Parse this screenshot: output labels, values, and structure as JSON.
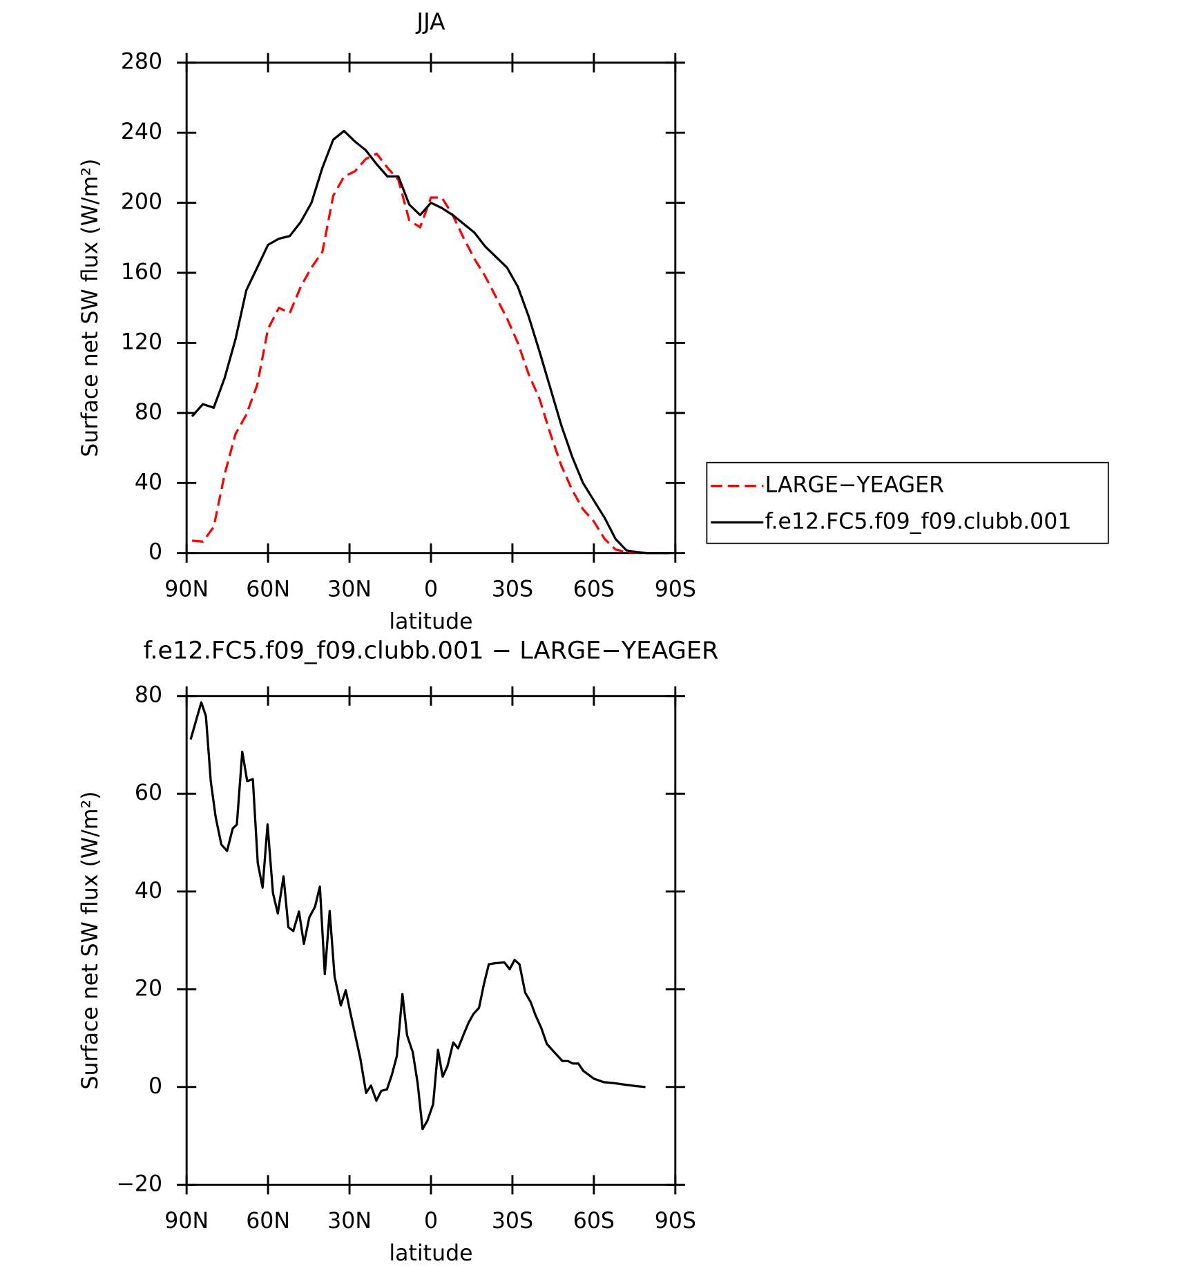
{
  "chart_data": [
    {
      "type": "line",
      "title": "JJA",
      "xlabel": "latitude",
      "ylabel": "Surface net SW flux (W/m²)",
      "x": [
        88,
        84,
        80,
        76,
        72,
        68,
        64,
        60,
        56,
        52,
        48,
        44,
        40,
        36,
        32,
        28,
        24,
        20,
        16,
        12,
        8,
        4,
        0,
        -4,
        -8,
        -12,
        -16,
        -20,
        -24,
        -28,
        -32,
        -36,
        -40,
        -44,
        -48,
        -52,
        -56,
        -60,
        -64,
        -68,
        -72,
        -76,
        -80,
        -84,
        -88
      ],
      "series": [
        {
          "name": "LARGE−YEAGER",
          "color": "#ff0000",
          "dash": "dashed",
          "values": [
            7,
            6.5,
            15,
            45,
            68,
            79,
            96,
            128,
            140,
            137,
            152,
            163,
            172,
            204,
            215,
            218,
            225,
            228,
            220,
            213,
            190,
            186,
            203,
            203,
            193,
            180,
            168,
            158,
            146,
            134,
            120,
            102,
            88,
            68,
            50,
            36,
            25,
            18,
            8,
            2,
            0.5,
            0.2,
            0,
            0,
            0
          ]
        },
        {
          "name": "f.e12.FC5.f09_f09.clubb.001",
          "color": "#000000",
          "dash": "solid",
          "values": [
            78,
            85,
            83,
            100,
            122,
            150,
            163,
            176,
            179.5,
            181,
            189,
            200,
            220,
            236,
            241,
            235,
            230,
            222,
            215,
            215,
            199,
            193,
            200,
            197,
            193,
            188,
            183,
            175,
            169,
            163,
            152,
            135,
            115,
            94,
            73,
            55,
            40,
            30,
            20,
            8,
            1.5,
            0.4,
            0,
            0,
            0
          ]
        }
      ],
      "xlim": [
        90,
        -90
      ],
      "xticks": [
        {
          "value": 90,
          "label": "90N"
        },
        {
          "value": 60,
          "label": "60N"
        },
        {
          "value": 30,
          "label": "30N"
        },
        0,
        {
          "value": -30,
          "label": "30S"
        },
        {
          "value": -60,
          "label": "60S"
        },
        {
          "value": -90,
          "label": "90S"
        }
      ],
      "ylim": [
        0,
        280
      ],
      "yticks": [
        0,
        40,
        80,
        120,
        160,
        200,
        240,
        280
      ],
      "legend": "right-outside"
    },
    {
      "type": "line",
      "title": "f.e12.FC5.f09_f09.clubb.001 − LARGE−YEAGER",
      "xlabel": "latitude",
      "ylabel": "Surface net SW flux (W/m²)",
      "x": [
        88.5,
        84.6,
        82.9,
        81.1,
        79.3,
        77.2,
        75.1,
        73,
        71.5,
        69.5,
        67.7,
        65.6,
        63.8,
        62,
        60.2,
        58.2,
        56.4,
        54.3,
        52.5,
        50.7,
        48.6,
        46.8,
        44.8,
        42.7,
        40.9,
        39.1,
        37.3,
        35.5,
        33.2,
        31.4,
        29.6,
        26,
        23.9,
        22.1,
        20.1,
        18.3,
        16.2,
        14.4,
        12.6,
        10.5,
        8.8,
        6.7,
        4.9,
        3.1,
        1.3,
        -0.8,
        -2.6,
        -4.3,
        -6.1,
        -8.2,
        -10,
        -12,
        -13.9,
        -15.7,
        -17.7,
        -19.5,
        -21.3,
        -23.4,
        -27,
        -29,
        -30.8,
        -32.6,
        -34.7,
        -36.7,
        -38.5,
        -40.6,
        -42.7,
        -46.3,
        -48.4,
        -50.5,
        -52.3,
        -54.3,
        -56.1,
        -60,
        -63.6,
        -67.5,
        -71.3,
        -75.2,
        -79
      ],
      "series": [
        {
          "color": "#000000",
          "dash": "solid",
          "values": [
            71.1,
            78.7,
            75.9,
            62.6,
            55.2,
            49.6,
            48.3,
            52.9,
            53.7,
            68.6,
            62.6,
            63,
            45.8,
            40.8,
            53.7,
            39.7,
            35.5,
            43.1,
            32.7,
            31.9,
            35.9,
            29.3,
            34.7,
            36.9,
            41,
            23.1,
            36,
            22.6,
            16.7,
            19.8,
            15,
            5.8,
            -1.2,
            0.3,
            -2.8,
            -0.8,
            -0.5,
            2.5,
            6.3,
            19,
            10.6,
            7.1,
            0.8,
            -8.6,
            -6.9,
            -3.5,
            7.6,
            2.1,
            4.3,
            9.1,
            7.9,
            10.7,
            13.2,
            15,
            16.2,
            21,
            25.1,
            25.3,
            25.5,
            24.1,
            26,
            25.1,
            19.3,
            17.4,
            14.7,
            12.1,
            8.8,
            6.6,
            5.3,
            5.3,
            4.8,
            4.8,
            3.3,
            1.7,
            1,
            0.8,
            0.5,
            0.2,
            0
          ]
        }
      ],
      "xlim": [
        90,
        -90
      ],
      "xticks": [
        {
          "value": 90,
          "label": "90N"
        },
        {
          "value": 60,
          "label": "60N"
        },
        {
          "value": 30,
          "label": "30N"
        },
        0,
        {
          "value": -30,
          "label": "30S"
        },
        {
          "value": -60,
          "label": "60S"
        },
        {
          "value": -90,
          "label": "90S"
        }
      ],
      "ylim": [
        -20,
        80
      ],
      "yticks": [
        {
          "value": -20,
          "label": "−20"
        },
        0,
        20,
        40,
        60,
        80
      ]
    }
  ]
}
